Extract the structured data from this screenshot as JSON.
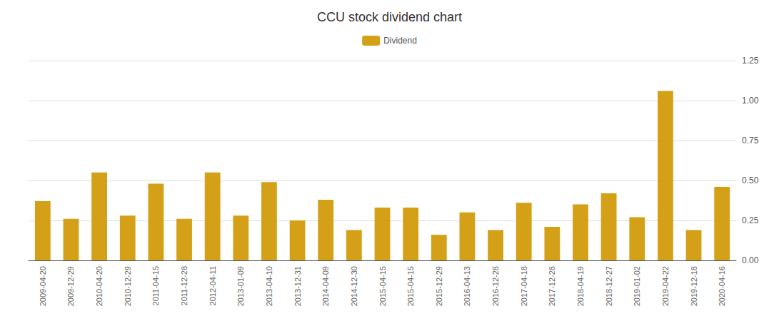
{
  "chart_data": {
    "type": "bar",
    "title": "CCU stock dividend chart",
    "categories": [
      "2009-04-20",
      "2009-12-29",
      "2010-04-20",
      "2010-12-29",
      "2011-04-15",
      "2011-12-28",
      "2012-04-11",
      "2013-01-09",
      "2013-04-10",
      "2013-12-31",
      "2014-04-09",
      "2014-12-30",
      "2015-04-15",
      "2015-04-15",
      "2015-12-29",
      "2016-04-13",
      "2016-12-28",
      "2017-04-18",
      "2017-12-28",
      "2018-04-19",
      "2018-12-27",
      "2019-01-02",
      "2019-04-22",
      "2019-12-18",
      "2020-04-16"
    ],
    "series": [
      {
        "name": "Dividend",
        "color": "#D4A017",
        "values": [
          0.37,
          0.26,
          0.55,
          0.28,
          0.48,
          0.26,
          0.55,
          0.28,
          0.49,
          0.25,
          0.38,
          0.19,
          0.33,
          0.33,
          0.16,
          0.3,
          0.19,
          0.36,
          0.21,
          0.35,
          0.42,
          0.27,
          1.06,
          0.19,
          0.46
        ]
      }
    ],
    "ylim": [
      0,
      1.25
    ],
    "yticks": [
      {
        "value": 0,
        "label": "0.00"
      },
      {
        "value": 0.25,
        "label": "0.25"
      },
      {
        "value": 0.5,
        "label": "0.50"
      },
      {
        "value": 0.75,
        "label": "0.75"
      },
      {
        "value": 1.0,
        "label": "1.00"
      },
      {
        "value": 1.25,
        "label": "1.25"
      }
    ],
    "grid": true
  }
}
